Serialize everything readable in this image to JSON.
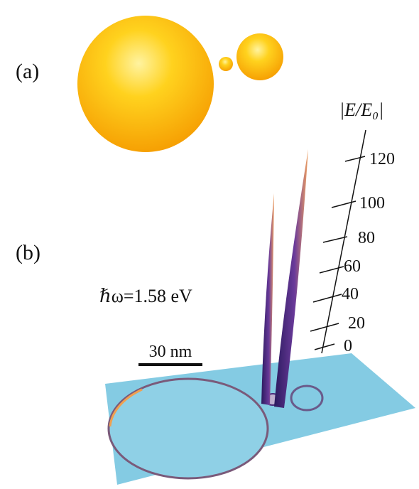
{
  "panels": [
    {
      "label": "(a)"
    },
    {
      "label": "(b)"
    }
  ],
  "annotation": "ℏω=1.58 eV",
  "scale_bar": "30 nm",
  "axis": {
    "label": "|E/E₀|",
    "ticks": [
      0,
      20,
      40,
      60,
      80,
      100,
      120
    ]
  }
}
